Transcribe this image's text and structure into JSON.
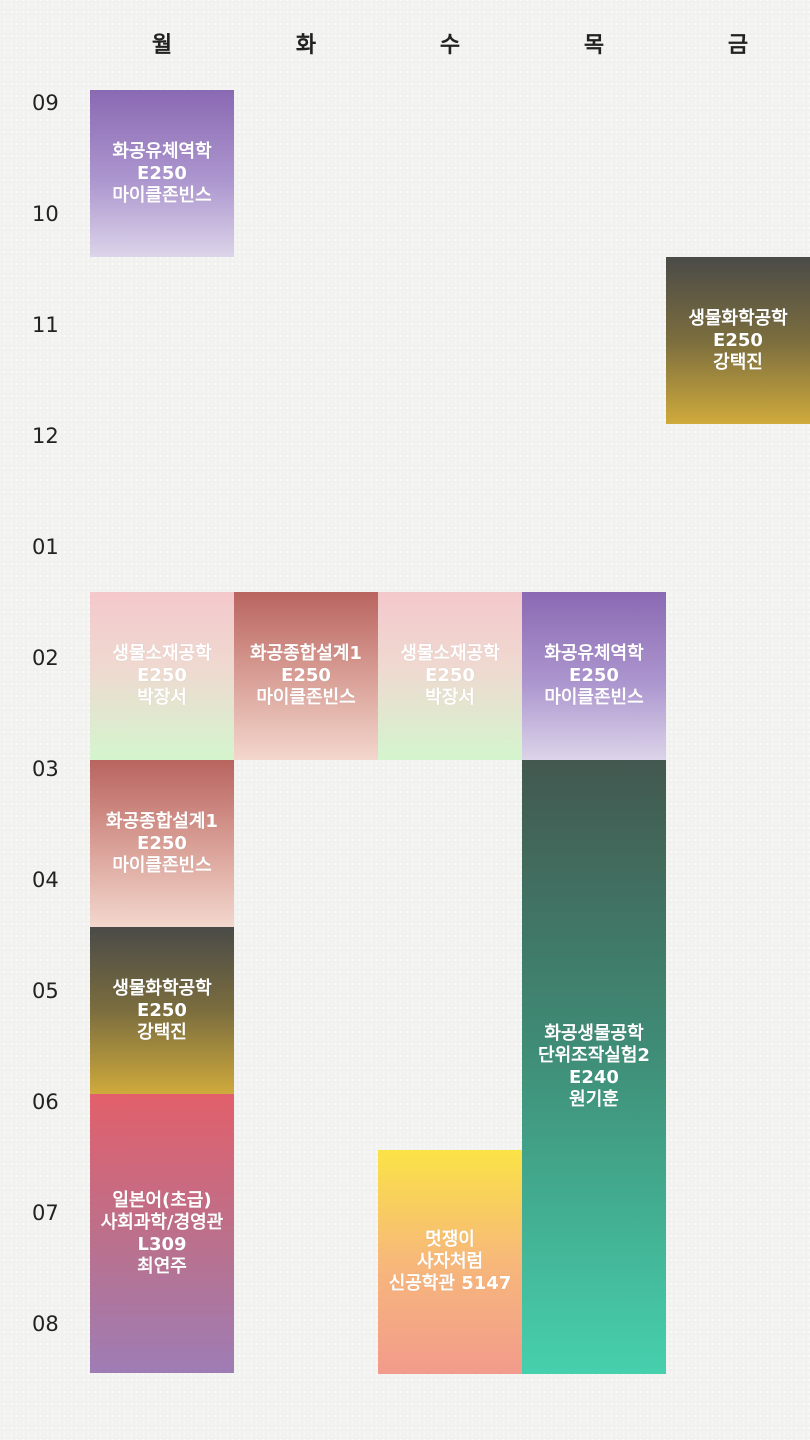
{
  "days": [
    "월",
    "화",
    "수",
    "목",
    "금"
  ],
  "hours": [
    "09",
    "10",
    "11",
    "12",
    "01",
    "02",
    "03",
    "04",
    "05",
    "06",
    "07",
    "08"
  ],
  "courses": {
    "mon_1": {
      "lines": [
        "화공유체역학",
        "E250",
        "마이클존빈스"
      ]
    },
    "mon_2": {
      "lines": [
        "생물소재공학",
        "E250",
        "박장서"
      ]
    },
    "mon_3": {
      "lines": [
        "화공종합설계1",
        "E250",
        "마이클존빈스"
      ]
    },
    "mon_4": {
      "lines": [
        "생물화학공학",
        "E250",
        "강택진"
      ]
    },
    "mon_5": {
      "lines": [
        "일본어(초급)",
        "사회과학/경영관",
        "L309",
        "최연주"
      ]
    },
    "tue_1": {
      "lines": [
        "화공종합설계1",
        "E250",
        "마이클존빈스"
      ]
    },
    "wed_1": {
      "lines": [
        "생물소재공학",
        "E250",
        "박장서"
      ]
    },
    "wed_2": {
      "lines": [
        "멋쟁이",
        "사자처럼",
        "신공학관 5147"
      ]
    },
    "thu_1": {
      "lines": [
        "화공유체역학",
        "E250",
        "마이클존빈스"
      ]
    },
    "thu_2": {
      "lines": [
        "화공생물공학",
        "단위조작실험2",
        "E240",
        "원기훈"
      ]
    },
    "fri_1": {
      "lines": [
        "생물화학공학",
        "E250",
        "강택진"
      ]
    }
  },
  "colors": {
    "purple": "#8a69b3",
    "olive": "#7b6d3e",
    "pink_green": "#f4c8cc",
    "salmon": "#b9645f",
    "teal": "#3f8a74",
    "red_purple": "#e2606b",
    "yellow_pink": "#fae346",
    "background": "#f3f3f1"
  }
}
